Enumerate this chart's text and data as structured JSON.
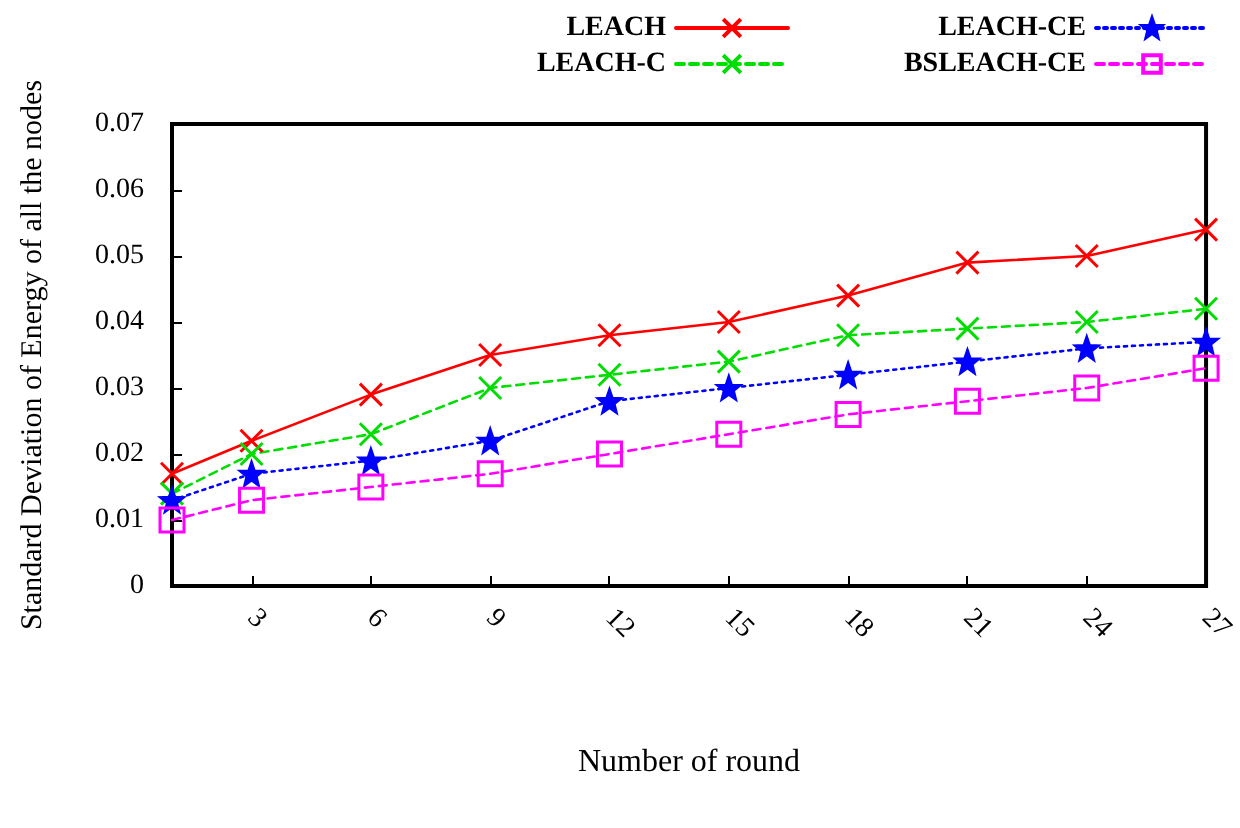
{
  "chart_data": {
    "type": "line",
    "xlabel": "Number of round",
    "ylabel": "Standard Deviation of Energy of all the nodes",
    "x": [
      1,
      3,
      6,
      9,
      12,
      15,
      18,
      21,
      24,
      27
    ],
    "series": [
      {
        "name": "LEACH",
        "color": "#ff0000",
        "marker": "cross",
        "line_style": "solid",
        "values": [
          0.017,
          0.022,
          0.029,
          0.035,
          0.038,
          0.04,
          0.044,
          0.049,
          0.05,
          0.054
        ]
      },
      {
        "name": "LEACH-C",
        "color": "#00dd00",
        "marker": "cross",
        "line_style": "dashed",
        "values": [
          0.014,
          0.02,
          0.023,
          0.03,
          0.032,
          0.034,
          0.038,
          0.039,
          0.04,
          0.042
        ]
      },
      {
        "name": "LEACH-CE",
        "color": "#0000ff",
        "marker": "star",
        "line_style": "dotted",
        "values": [
          0.013,
          0.017,
          0.019,
          0.022,
          0.028,
          0.03,
          0.032,
          0.034,
          0.036,
          0.037
        ]
      },
      {
        "name": "BSLEACH-CE",
        "color": "#ff00ff",
        "marker": "square",
        "line_style": "dashed",
        "values": [
          0.01,
          0.013,
          0.015,
          0.017,
          0.02,
          0.023,
          0.026,
          0.028,
          0.03,
          0.033
        ]
      }
    ],
    "xlim": [
      1,
      27
    ],
    "xticks": [
      3,
      6,
      9,
      12,
      15,
      18,
      21,
      24,
      27
    ],
    "ylim": [
      0,
      0.07
    ],
    "yticks": [
      0,
      0.01,
      0.02,
      0.03,
      0.04,
      0.05,
      0.06,
      0.07
    ],
    "grid": false,
    "legend": "top right"
  }
}
